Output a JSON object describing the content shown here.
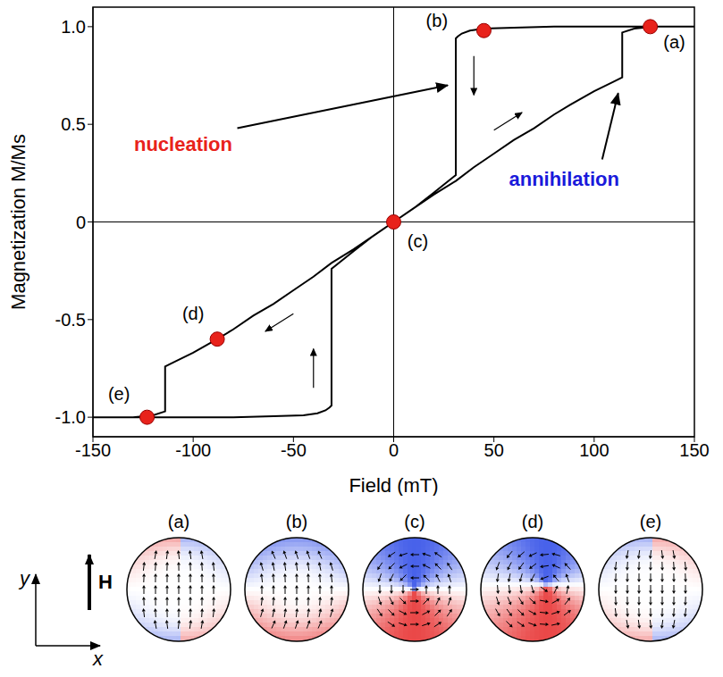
{
  "chart_data": {
    "type": "line",
    "x_label": "Field (mT)",
    "y_label": "Magnetization M/Ms",
    "xlim": [
      -150,
      150
    ],
    "xticks": [
      -150,
      -100,
      -50,
      0,
      50,
      100,
      150
    ],
    "ylim": [
      -1.1,
      1.1
    ],
    "yticks": [
      {
        "value": -1,
        "label": "-1.0"
      },
      -0.5,
      0,
      0.5,
      {
        "value": 1,
        "label": "1.0"
      }
    ],
    "color": "#000000",
    "x": [
      150,
      130,
      115,
      100,
      80,
      60,
      45,
      38,
      34,
      32,
      31,
      31,
      20,
      10,
      0,
      -10,
      -20,
      -31,
      -40,
      -50,
      -60,
      -70,
      -80,
      -88,
      -100,
      -110,
      -114,
      -114,
      -120,
      -130,
      -150,
      -150,
      -130,
      -115,
      -100,
      -80,
      -60,
      -45,
      -38,
      -34,
      -32,
      -31,
      -31,
      -20,
      -10,
      0,
      10,
      20,
      31,
      40,
      50,
      60,
      70,
      80,
      88,
      100,
      110,
      114,
      114,
      120,
      130,
      150
    ],
    "values": [
      1,
      1,
      1,
      1,
      1,
      0.995,
      0.99,
      0.98,
      0.965,
      0.95,
      0.94,
      0.24,
      0.15,
      0.07,
      0,
      -0.07,
      -0.14,
      -0.21,
      -0.28,
      -0.35,
      -0.42,
      -0.48,
      -0.55,
      -0.6,
      -0.67,
      -0.72,
      -0.74,
      -0.97,
      -0.99,
      -1,
      -1,
      -1,
      -1,
      -1,
      -1,
      -1,
      -0.995,
      -0.99,
      -0.98,
      -0.965,
      -0.95,
      -0.94,
      -0.24,
      -0.15,
      -0.07,
      0,
      0.07,
      0.14,
      0.21,
      0.28,
      0.35,
      0.42,
      0.48,
      0.55,
      0.6,
      0.67,
      0.72,
      0.74,
      0.97,
      0.99,
      1,
      1
    ],
    "markers": {
      "color": "#e8221b",
      "labels": [
        "(a)",
        "(b)",
        "(c)",
        "(d)",
        "(e)"
      ],
      "x": [
        128,
        45,
        0,
        -88,
        -123
      ],
      "values": [
        1,
        0.98,
        0,
        -0.6,
        -1
      ]
    },
    "annotations": [
      {
        "text": "nucleation",
        "color": "#e8221b"
      },
      {
        "text": "annihilation",
        "color": "#1a1adb"
      }
    ]
  },
  "diagrams": {
    "labels": [
      "(a)",
      "(b)",
      "(c)",
      "(d)",
      "(e)"
    ],
    "field_label": "H",
    "x_axis_label": "x",
    "y_axis_label": "y"
  }
}
